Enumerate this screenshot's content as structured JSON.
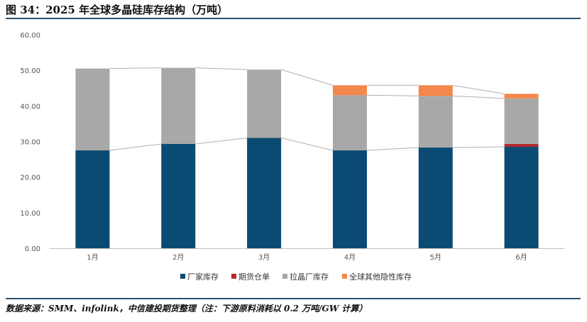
{
  "header": {
    "title": "图 34：2025 年全球多晶硅库存结构（万吨）"
  },
  "footer": {
    "source": "数据来源：SMM、infolink，中信建投期货整理（注：下游原料消耗以 0.2 万吨/GW 计算）"
  },
  "chart_data": {
    "type": "bar",
    "stacked": true,
    "categories": [
      "1月",
      "2月",
      "3月",
      "4月",
      "5月",
      "6月"
    ],
    "series": [
      {
        "name": "厂家库存",
        "color": "#0b4a72",
        "values": [
          27.5,
          29.3,
          31.0,
          27.5,
          28.3,
          28.5
        ]
      },
      {
        "name": "期货仓单",
        "color": "#b32a30",
        "values": [
          0,
          0,
          0,
          0,
          0,
          0.8
        ]
      },
      {
        "name": "拉晶厂库存",
        "color": "#a8a8a8",
        "values": [
          23.0,
          21.4,
          19.2,
          15.5,
          14.5,
          12.8
        ]
      },
      {
        "name": "全球其他隐性库存",
        "color": "#f4874b",
        "values": [
          0,
          0,
          0,
          2.8,
          3.0,
          1.3
        ]
      }
    ],
    "ylim": [
      0,
      60
    ],
    "yticks": [
      "0.00",
      "10.00",
      "20.00",
      "30.00",
      "40.00",
      "50.00",
      "60.00"
    ],
    "grid": false,
    "legend": "bottom",
    "connector_lines": true
  }
}
